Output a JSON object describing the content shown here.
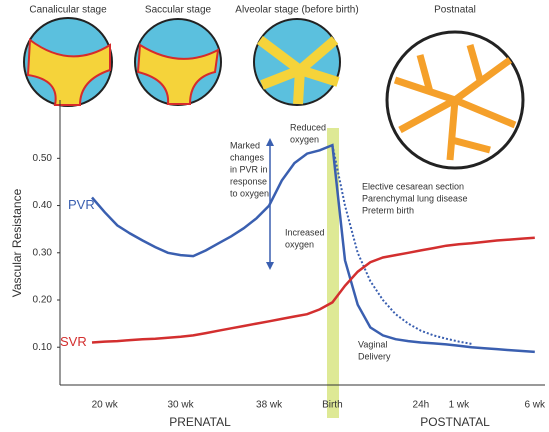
{
  "chart_data": {
    "type": "line",
    "stage_titles": [
      "Canalicular stage",
      "Saccular stage",
      "Alveolar stage (before birth)",
      "Postnatal"
    ],
    "y_label": "Vascular Resistance",
    "phase_labels": [
      "PRENATAL",
      "POSTNATAL"
    ],
    "annotations": [
      "Reduced",
      "oxygen",
      "Marked",
      "changes",
      "in PVR in",
      "response",
      "to oxygen",
      "Increased",
      "oxygen",
      "Elective cesarean section",
      "Parenchymal lung disease",
      "Preterm birth",
      "Vaginal",
      "Delivery"
    ],
    "categories": [
      null,
      "20 wk",
      null,
      null,
      null,
      null,
      null,
      "30 wk",
      null,
      null,
      null,
      null,
      null,
      null,
      "38 wk",
      null,
      null,
      null,
      null,
      "Birth",
      null,
      null,
      null,
      null,
      null,
      null,
      "24h",
      null,
      null,
      "1 wk",
      null,
      null,
      null,
      null,
      null,
      "6 wk"
    ],
    "series": [
      {
        "name": "PVR",
        "color": "#3a5fb0",
        "dash": false,
        "values": [
          0.417,
          0.386,
          0.358,
          0.341,
          0.326,
          0.312,
          0.3,
          0.295,
          0.293,
          0.305,
          0.32,
          0.335,
          0.352,
          0.373,
          0.4,
          0.453,
          0.49,
          0.51,
          0.517,
          0.528,
          0.284,
          0.19,
          0.142,
          0.125,
          0.117,
          0.113,
          0.11,
          0.108,
          0.106,
          0.103,
          0.1,
          0.098,
          0.096,
          0.094,
          0.092,
          0.09
        ]
      },
      {
        "color": "#3a5fb0",
        "dash": true,
        "values": [
          null,
          null,
          null,
          null,
          null,
          null,
          null,
          null,
          null,
          null,
          null,
          null,
          null,
          null,
          null,
          null,
          null,
          null,
          null,
          0.528,
          0.4,
          0.3,
          0.24,
          0.2,
          0.17,
          0.15,
          0.135,
          0.125,
          0.118,
          0.112,
          0.107,
          null,
          null,
          null,
          null,
          null
        ]
      },
      {
        "name": "SVR",
        "color": "#d32f2f",
        "dash": false,
        "values": [
          0.11,
          0.112,
          0.113,
          0.115,
          0.117,
          0.118,
          0.12,
          0.122,
          0.125,
          0.13,
          0.135,
          0.14,
          0.145,
          0.15,
          0.155,
          0.16,
          0.165,
          0.17,
          0.18,
          0.195,
          0.23,
          0.26,
          0.28,
          0.29,
          0.295,
          0.3,
          0.305,
          0.31,
          0.315,
          0.318,
          0.32,
          0.323,
          0.326,
          0.328,
          0.33,
          0.332
        ]
      }
    ],
    "ylim": [
      0.02,
      0.56
    ],
    "yticks": [
      {
        "value": 0.1,
        "label": "0.10"
      },
      {
        "value": 0.2,
        "label": "0.20"
      },
      {
        "value": 0.3,
        "label": "0.30"
      },
      {
        "value": 0.4,
        "label": "0.40"
      },
      {
        "value": 0.5,
        "label": "0.50"
      }
    ],
    "grid": false
  }
}
